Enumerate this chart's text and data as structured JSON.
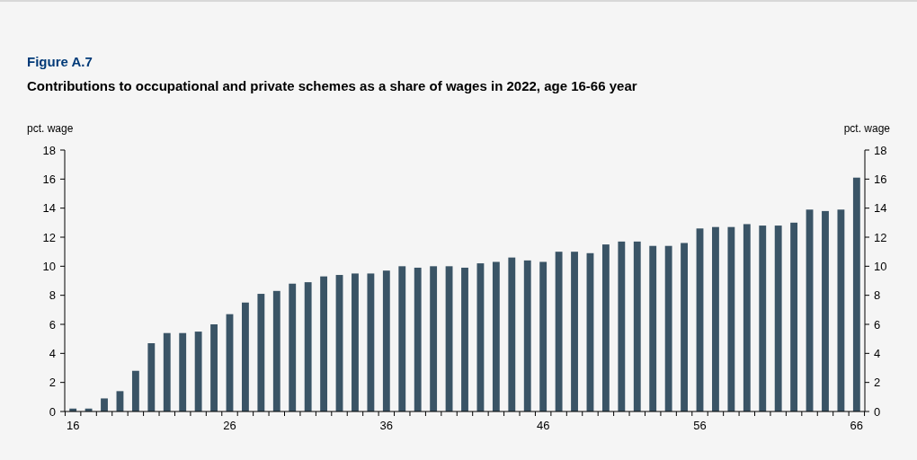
{
  "chart_data": {
    "type": "bar",
    "title": "Figure A.7",
    "subtitle": "Contributions to occupational and private schemes as a share of wages in 2022, age 16-66 year",
    "ylabel": "pct. wage",
    "y2label": "pct. wage",
    "categories": [
      "16",
      null,
      null,
      null,
      null,
      null,
      null,
      null,
      null,
      null,
      "26",
      null,
      null,
      null,
      null,
      null,
      null,
      null,
      null,
      null,
      "36",
      null,
      null,
      null,
      null,
      null,
      null,
      null,
      null,
      null,
      "46",
      null,
      null,
      null,
      null,
      null,
      null,
      null,
      null,
      null,
      "56",
      null,
      null,
      null,
      null,
      null,
      null,
      null,
      null,
      null,
      "66"
    ],
    "values": [
      0.2,
      0.2,
      0.9,
      1.4,
      2.8,
      4.7,
      5.4,
      5.4,
      5.5,
      6.0,
      6.7,
      7.5,
      8.1,
      8.3,
      8.8,
      8.9,
      9.3,
      9.4,
      9.5,
      9.5,
      9.7,
      10.0,
      9.9,
      10.0,
      10.0,
      9.9,
      10.2,
      10.3,
      10.6,
      10.4,
      10.3,
      11.0,
      11.0,
      10.9,
      11.5,
      11.7,
      11.7,
      11.4,
      11.4,
      11.6,
      12.6,
      12.7,
      12.7,
      12.9,
      12.8,
      12.8,
      13.0,
      13.9,
      13.8,
      13.9,
      16.1
    ],
    "color": "#3a5466",
    "ylim": [
      0,
      18
    ],
    "yticks": [
      0,
      2,
      4,
      6,
      8,
      10,
      12,
      14,
      16,
      18
    ],
    "y2lim": [
      0,
      18
    ],
    "y2ticks": [
      0,
      2,
      4,
      6,
      8,
      10,
      12,
      14,
      16,
      18
    ],
    "grid": false
  }
}
